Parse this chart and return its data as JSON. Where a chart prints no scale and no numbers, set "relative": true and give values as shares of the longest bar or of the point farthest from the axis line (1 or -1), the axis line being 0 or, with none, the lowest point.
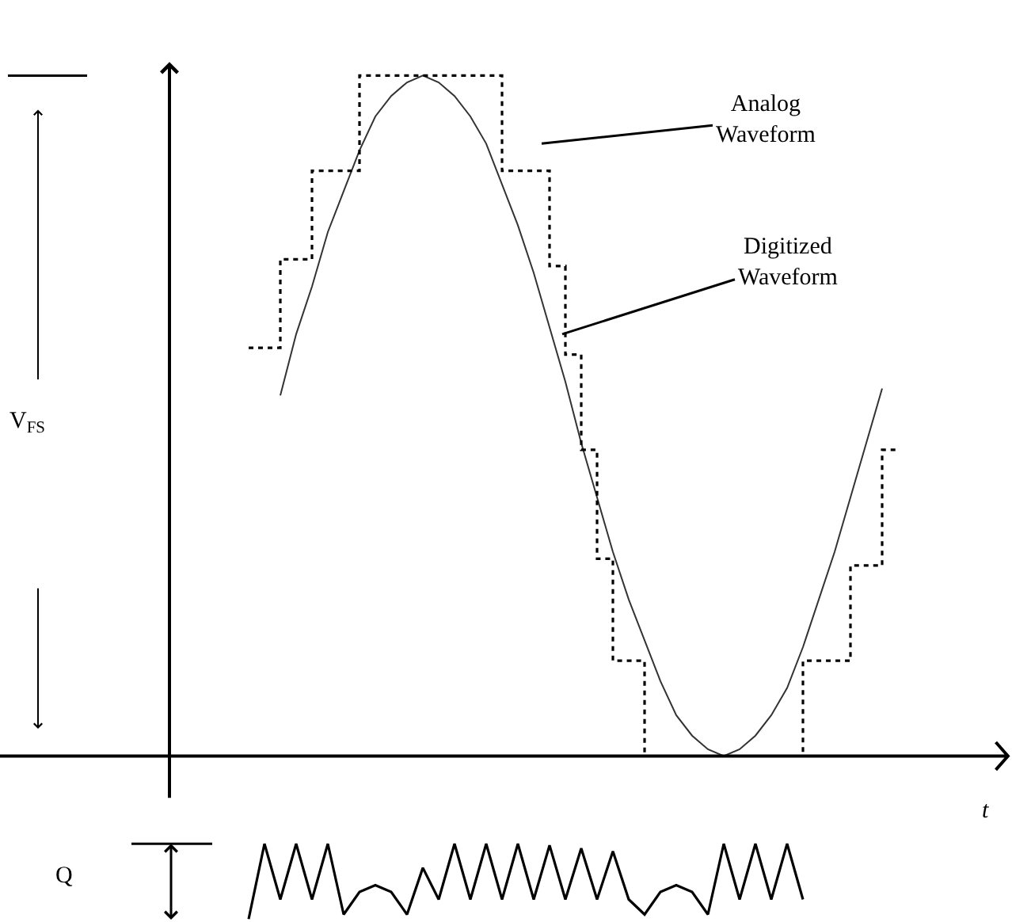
{
  "chart_data": [
    {
      "type": "line",
      "relative": true,
      "xlabel": "t",
      "annotations": [
        "V$_{FS}$",
        "Analog\nWaveform",
        "Digitized\nWaveform"
      ],
      "categories": [
        null,
        null,
        null,
        null,
        null,
        null,
        null,
        null,
        null,
        null,
        null,
        null,
        null,
        null,
        null,
        null,
        null,
        null,
        null,
        null,
        null,
        null,
        null,
        null,
        null,
        null,
        null,
        null,
        null,
        null,
        null,
        null,
        null,
        null,
        null,
        null,
        null,
        null,
        null,
        null,
        null,
        null
      ],
      "series": [
        {
          "type": "line",
          "color": "#333333",
          "values": [
            null,
            null,
            0.53,
            0.62,
            0.69,
            0.77,
            0.83,
            0.89,
            0.94,
            0.97,
            0.99,
            1.0,
            0.99,
            0.97,
            0.94,
            0.9,
            0.84,
            0.78,
            0.71,
            0.63,
            0.55,
            0.46,
            0.38,
            0.3,
            0.23,
            0.17,
            0.11,
            0.06,
            0.03,
            0.01,
            0.0,
            0.01,
            0.03,
            0.06,
            0.1,
            0.16,
            0.23,
            0.3,
            0.38,
            0.46,
            0.54,
            null
          ]
        },
        {
          "type": "step",
          "color": "#000000",
          "line_style": "dotted",
          "values": [
            0.6,
            0.6,
            0.73,
            0.73,
            0.86,
            0.86,
            0.86,
            1.0,
            1.0,
            1.0,
            1.0,
            1.0,
            1.0,
            1.0,
            1.0,
            1.0,
            0.86,
            0.86,
            0.86,
            0.72,
            0.59,
            0.45,
            0.29,
            0.14,
            0.14,
            0.0,
            0.0,
            0.0,
            0.0,
            0.0,
            0.0,
            0.0,
            0.0,
            0.0,
            0.0,
            0.14,
            0.14,
            0.14,
            0.28,
            0.28,
            0.45,
            0.45
          ]
        }
      ]
    },
    {
      "type": "line",
      "relative": true,
      "annotations": [
        "Q"
      ],
      "categories": [
        null,
        null,
        null,
        null,
        null,
        null,
        null,
        null,
        null,
        null,
        null,
        null,
        null,
        null,
        null,
        null,
        null,
        null,
        null,
        null,
        null,
        null,
        null,
        null,
        null,
        null,
        null,
        null,
        null,
        null,
        null,
        null,
        null,
        null,
        null,
        null
      ],
      "series": [
        {
          "color": "#000000",
          "values": [
            0.0,
            1.0,
            0.26,
            1.0,
            0.26,
            1.0,
            0.06,
            0.36,
            0.45,
            0.36,
            0.06,
            0.68,
            0.26,
            1.0,
            0.26,
            1.0,
            0.26,
            1.0,
            0.26,
            0.98,
            0.26,
            0.94,
            0.26,
            0.9,
            0.26,
            0.06,
            0.36,
            0.45,
            0.36,
            0.06,
            1.0,
            0.26,
            1.0,
            0.26,
            1.0,
            0.26
          ]
        }
      ]
    }
  ]
}
